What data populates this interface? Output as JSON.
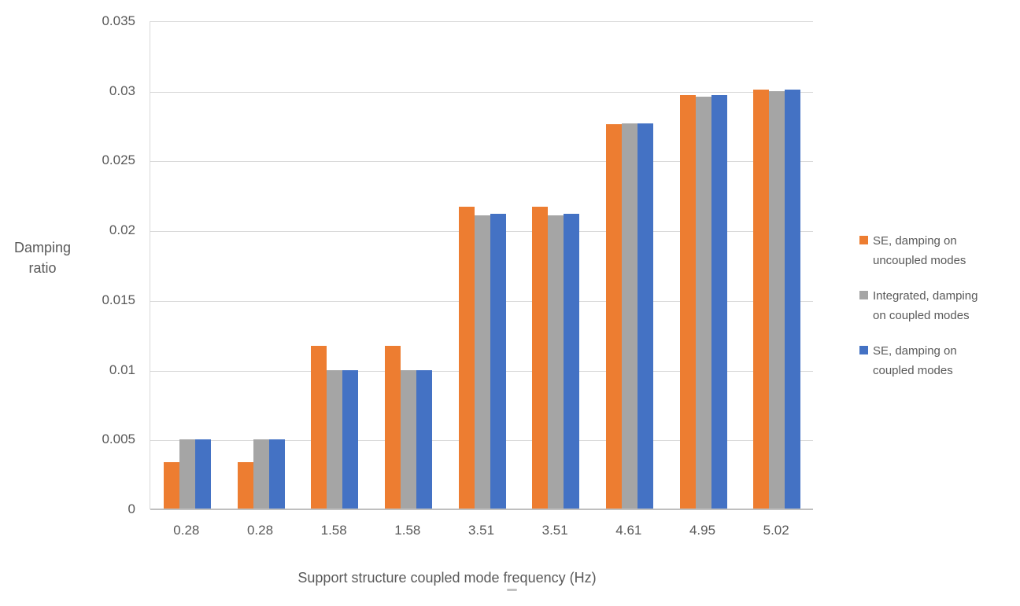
{
  "chart_data": {
    "type": "bar",
    "title": "",
    "xlabel": "Support structure coupled mode frequency (Hz)",
    "ylabel_lines": [
      "Damping",
      "ratio"
    ],
    "categories": [
      "0.28",
      "0.28",
      "1.58",
      "1.58",
      "3.51",
      "3.51",
      "4.61",
      "4.95",
      "5.02"
    ],
    "series": [
      {
        "name": "SE, damping on uncoupled modes",
        "color": "#ED7D31",
        "values": [
          0.0034,
          0.0034,
          0.0117,
          0.0117,
          0.0217,
          0.0217,
          0.0276,
          0.0297,
          0.0301
        ]
      },
      {
        "name": "Integrated, damping on coupled modes",
        "color": "#A5A5A5",
        "values": [
          0.005,
          0.005,
          0.01,
          0.01,
          0.0211,
          0.0211,
          0.0277,
          0.0296,
          0.03
        ]
      },
      {
        "name": "SE, damping on coupled modes",
        "color": "#4472C4",
        "values": [
          0.005,
          0.005,
          0.01,
          0.01,
          0.0212,
          0.0212,
          0.0277,
          0.0297,
          0.0301
        ]
      }
    ],
    "ylim": [
      0,
      0.035
    ],
    "ytick_step": 0.005,
    "ytick_labels": [
      "0",
      "0.005",
      "0.01",
      "0.015",
      "0.02",
      "0.025",
      "0.03",
      "0.035"
    ],
    "grid": true,
    "legend_position": "right",
    "legend": [
      {
        "lines": [
          "SE, damping on",
          "uncoupled modes"
        ],
        "color": "#ED7D31"
      },
      {
        "lines": [
          "Integrated, damping",
          "on coupled modes"
        ],
        "color": "#A5A5A5"
      },
      {
        "lines": [
          "SE, damping on",
          "coupled modes"
        ],
        "color": "#4472C4"
      }
    ]
  },
  "colors": {
    "background": "#FFFFFF",
    "text": "#595959",
    "gridline": "#D9D9D9",
    "plot_border": "#D9D9D9",
    "axis_line": "#BFBFBF"
  }
}
